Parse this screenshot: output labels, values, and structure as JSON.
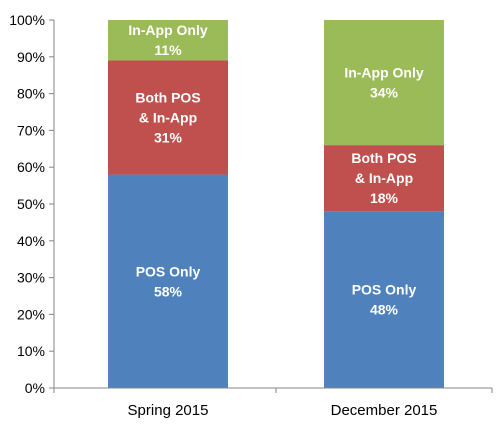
{
  "chart_data": {
    "type": "bar",
    "stacked": true,
    "categories": [
      "Spring 2015",
      "December 2015"
    ],
    "series": [
      {
        "name": "POS Only",
        "label_lines": [
          "POS Only"
        ],
        "values": [
          58,
          48
        ],
        "color": "#4F81BD"
      },
      {
        "name": "Both POS & In-App",
        "label_lines": [
          "Both POS",
          "& In-App"
        ],
        "values": [
          31,
          18
        ],
        "color": "#C0504D"
      },
      {
        "name": "In-App Only",
        "label_lines": [
          "In-App Only"
        ],
        "values": [
          11,
          34
        ],
        "color": "#9BBB59"
      }
    ],
    "ylim": [
      0,
      100
    ],
    "yticks": [
      "0%",
      "10%",
      "20%",
      "30%",
      "40%",
      "50%",
      "60%",
      "70%",
      "80%",
      "90%",
      "100%"
    ],
    "value_suffix": "%",
    "grid": false,
    "title": "",
    "xlabel": "",
    "ylabel": ""
  }
}
